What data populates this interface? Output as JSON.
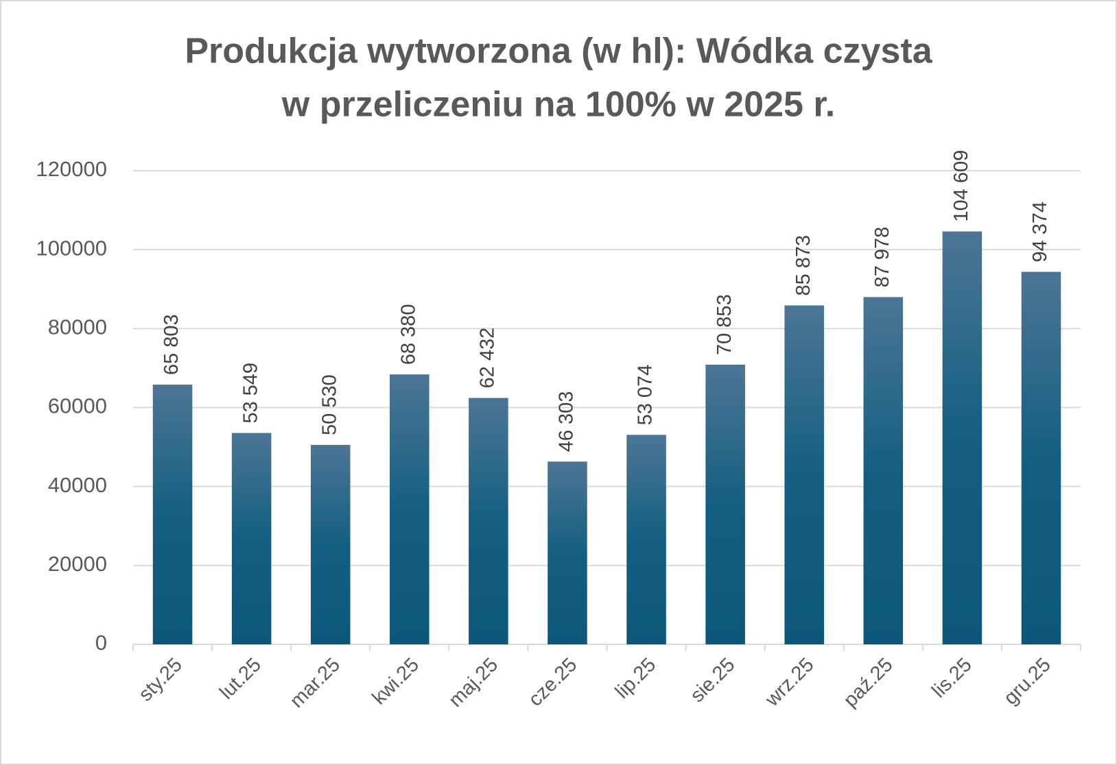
{
  "chart_data": {
    "type": "bar",
    "title": [
      "Produkcja wytworzona (w hl): Wódka czysta",
      "w przeliczeniu na 100% w 2025 r."
    ],
    "categories": [
      "sty.25",
      "lut.25",
      "mar.25",
      "kwi.25",
      "maj.25",
      "cze.25",
      "lip.25",
      "sie.25",
      "wrz.25",
      "paź.25",
      "lis.25",
      "gru.25"
    ],
    "values": [
      65803,
      53549,
      50530,
      68380,
      62432,
      46303,
      53074,
      70853,
      85873,
      87978,
      104609,
      94374
    ],
    "value_labels": [
      "65 803",
      "53 549",
      "50 530",
      "68 380",
      "62 432",
      "46 303",
      "53 074",
      "70 853",
      "85 873",
      "87 978",
      "104 609",
      "94 374"
    ],
    "color": "#135f82",
    "ylim": [
      0,
      120000
    ],
    "yticks": [
      0,
      20000,
      40000,
      60000,
      80000,
      100000,
      120000
    ],
    "grid": true
  }
}
